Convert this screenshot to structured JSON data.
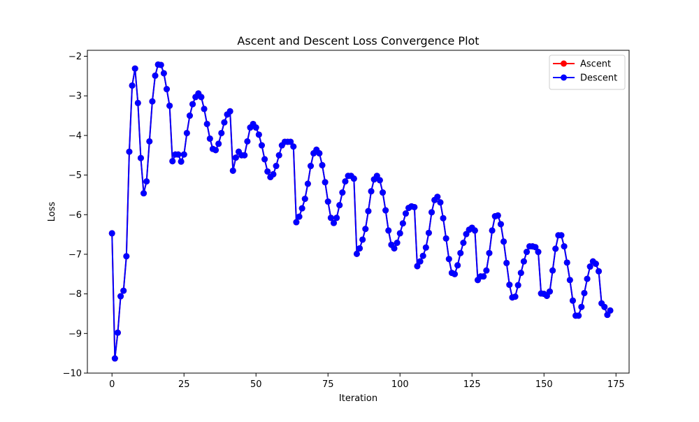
{
  "chart_data": {
    "type": "line",
    "title": "Ascent and Descent Loss Convergence Plot",
    "xlabel": "Iteration",
    "ylabel": "Loss",
    "xlim": [
      -8.55,
      179.55
    ],
    "ylim": [
      -10,
      -1.85
    ],
    "xticks": [
      0,
      25,
      50,
      75,
      100,
      125,
      150,
      175
    ],
    "xtick_labels": [
      "0",
      "25",
      "50",
      "75",
      "100",
      "125",
      "150",
      "175"
    ],
    "yticks": [
      -10,
      -9,
      -8,
      -7,
      -6,
      -5,
      -4,
      -3,
      -2
    ],
    "ytick_labels": [
      "−10",
      "−9",
      "−8",
      "−7",
      "−6",
      "−5",
      "−4",
      "−3",
      "−2"
    ],
    "grid": false,
    "legend_position": "top-right",
    "legend": [
      "Ascent",
      "Descent"
    ],
    "series": [
      {
        "name": "Ascent",
        "color": "#ff0000",
        "marker": "circle",
        "values": [
          -6.47,
          -9.63,
          -8.98,
          -8.06,
          -7.92,
          -7.05,
          -4.41,
          -2.74,
          -2.31,
          -3.18,
          -4.57,
          -5.46,
          -5.16,
          -4.15,
          -3.14,
          -2.49,
          -2.21,
          -2.22,
          -2.43,
          -2.83,
          -3.25,
          -4.65,
          -4.48,
          -4.48,
          -4.66,
          -4.48,
          -3.94,
          -3.5,
          -3.21,
          -3.03,
          -2.94,
          -3.03,
          -3.33,
          -3.71,
          -4.08,
          -4.34,
          -4.37,
          -4.21,
          -3.94,
          -3.67,
          -3.47,
          -3.39,
          -4.89,
          -4.56,
          -4.41,
          -4.5,
          -4.5,
          -4.15,
          -3.8,
          -3.71,
          -3.8,
          -3.98,
          -4.25,
          -4.6,
          -4.91,
          -5.05,
          -4.98,
          -4.77,
          -4.5,
          -4.25,
          -4.16,
          -4.16,
          -4.16,
          -4.28,
          -6.19,
          -6.05,
          -5.84,
          -5.6,
          -5.22,
          -4.77,
          -4.45,
          -4.36,
          -4.45,
          -4.75,
          -5.18,
          -5.67,
          -6.08,
          -6.21,
          -6.08,
          -5.76,
          -5.44,
          -5.16,
          -5.02,
          -5.02,
          -5.09,
          -6.99,
          -6.85,
          -6.63,
          -6.36,
          -5.91,
          -5.41,
          -5.11,
          -5.02,
          -5.13,
          -5.44,
          -5.89,
          -6.4,
          -6.76,
          -6.85,
          -6.71,
          -6.47,
          -6.22,
          -5.97,
          -5.83,
          -5.79,
          -5.81,
          -7.3,
          -7.18,
          -7.04,
          -6.83,
          -6.46,
          -5.94,
          -5.63,
          -5.55,
          -5.69,
          -6.09,
          -6.6,
          -7.12,
          -7.47,
          -7.5,
          -7.28,
          -6.97,
          -6.71,
          -6.49,
          -6.38,
          -6.33,
          -6.4,
          -7.65,
          -7.56,
          -7.56,
          -7.41,
          -6.97,
          -6.4,
          -6.04,
          -6.02,
          -6.24,
          -6.68,
          -7.22,
          -7.77,
          -8.09,
          -8.07,
          -7.78,
          -7.47,
          -7.18,
          -6.94,
          -6.8,
          -6.8,
          -6.82,
          -6.94,
          -7.99,
          -8.0,
          -8.05,
          -7.94,
          -7.41,
          -6.86,
          -6.52,
          -6.52,
          -6.8,
          -7.21,
          -7.65,
          -8.17,
          -8.55,
          -8.55,
          -8.33,
          -7.98,
          -7.62,
          -7.31,
          -7.18,
          -7.24,
          -7.43,
          -8.24,
          -8.33,
          -8.53,
          -8.42
        ]
      },
      {
        "name": "Descent",
        "color": "#0000ff",
        "marker": "circle",
        "values": [
          -6.47,
          -9.63,
          -8.98,
          -8.06,
          -7.92,
          -7.05,
          -4.41,
          -2.74,
          -2.31,
          -3.18,
          -4.57,
          -5.46,
          -5.16,
          -4.15,
          -3.14,
          -2.49,
          -2.21,
          -2.22,
          -2.43,
          -2.83,
          -3.25,
          -4.65,
          -4.48,
          -4.48,
          -4.66,
          -4.48,
          -3.94,
          -3.5,
          -3.21,
          -3.03,
          -2.94,
          -3.03,
          -3.33,
          -3.71,
          -4.08,
          -4.34,
          -4.37,
          -4.21,
          -3.94,
          -3.67,
          -3.47,
          -3.39,
          -4.89,
          -4.56,
          -4.41,
          -4.5,
          -4.5,
          -4.15,
          -3.8,
          -3.71,
          -3.8,
          -3.98,
          -4.25,
          -4.6,
          -4.91,
          -5.05,
          -4.98,
          -4.77,
          -4.5,
          -4.25,
          -4.16,
          -4.16,
          -4.16,
          -4.28,
          -6.19,
          -6.05,
          -5.84,
          -5.6,
          -5.22,
          -4.77,
          -4.45,
          -4.36,
          -4.45,
          -4.75,
          -5.18,
          -5.67,
          -6.08,
          -6.21,
          -6.08,
          -5.76,
          -5.44,
          -5.16,
          -5.02,
          -5.02,
          -5.09,
          -6.99,
          -6.85,
          -6.63,
          -6.36,
          -5.91,
          -5.41,
          -5.11,
          -5.02,
          -5.13,
          -5.44,
          -5.89,
          -6.4,
          -6.76,
          -6.85,
          -6.71,
          -6.47,
          -6.22,
          -5.97,
          -5.83,
          -5.79,
          -5.81,
          -7.3,
          -7.18,
          -7.04,
          -6.83,
          -6.46,
          -5.94,
          -5.63,
          -5.55,
          -5.69,
          -6.09,
          -6.6,
          -7.12,
          -7.47,
          -7.5,
          -7.28,
          -6.97,
          -6.71,
          -6.49,
          -6.38,
          -6.33,
          -6.4,
          -7.65,
          -7.56,
          -7.56,
          -7.41,
          -6.97,
          -6.4,
          -6.04,
          -6.02,
          -6.24,
          -6.68,
          -7.22,
          -7.77,
          -8.09,
          -8.07,
          -7.78,
          -7.47,
          -7.18,
          -6.94,
          -6.8,
          -6.8,
          -6.82,
          -6.94,
          -7.99,
          -8.0,
          -8.05,
          -7.94,
          -7.41,
          -6.86,
          -6.52,
          -6.52,
          -6.8,
          -7.21,
          -7.65,
          -8.17,
          -8.55,
          -8.55,
          -8.33,
          -7.98,
          -7.62,
          -7.31,
          -7.18,
          -7.24,
          -7.43,
          -8.24,
          -8.33,
          -8.53,
          -8.42
        ]
      }
    ]
  }
}
